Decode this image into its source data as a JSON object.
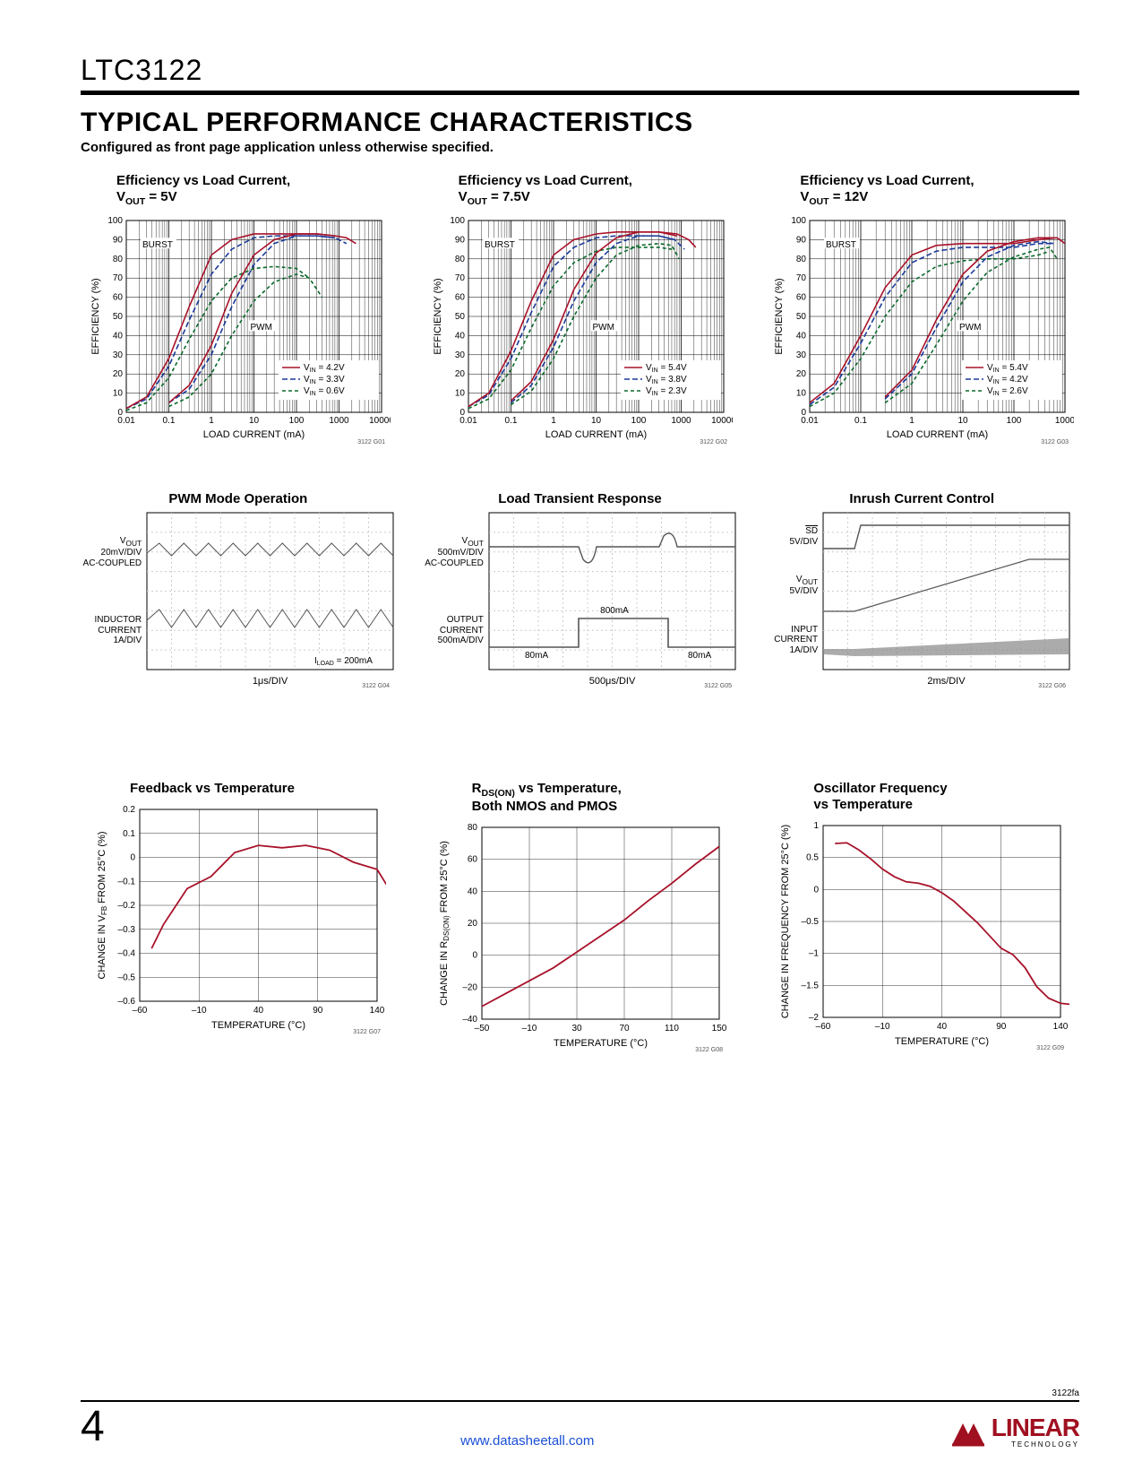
{
  "header": {
    "part_number": "LTC3122",
    "section_title": "TYPICAL PERFORMANCE CHARACTERISTICS",
    "section_subtitle": "Configured as front page application unless otherwise specified."
  },
  "footer": {
    "doc_rev": "3122fa",
    "page_num": "4",
    "link": "www.datasheetall.com",
    "logo_text": "LINEAR",
    "logo_sub": "TECHNOLOGY"
  },
  "colors": {
    "line_red": "#a8122a",
    "line_blue": "#1a3a9a",
    "line_green": "#0a6a2a",
    "grid": "#000000",
    "scope_grid": "#cccccc",
    "scope_trace": "#555555"
  },
  "eff_charts": [
    {
      "title_a": "Efficiency vs Load Current,",
      "title_b": "V<sub>OUT</sub> = 5V",
      "ylabel": "EFFICIENCY (%)",
      "xlabel": "LOAD CURRENT (mA)",
      "fig_id": "3122 G01",
      "yticks": [
        0,
        10,
        20,
        30,
        40,
        50,
        60,
        70,
        80,
        90,
        100
      ],
      "xlabels": [
        "0.01",
        "0.1",
        "1",
        "10",
        "100",
        "1000",
        "10000"
      ],
      "legend": [
        {
          "label": "V_IN = 4.2V",
          "color": "#a8122a",
          "dash": ""
        },
        {
          "label": "V_IN = 3.3V",
          "color": "#1a3a9a",
          "dash": "6,3"
        },
        {
          "label": "V_IN = 0.6V",
          "color": "#0a6a2a",
          "dash": "4,3"
        }
      ],
      "burst_label": "BURST",
      "pwm_label": "PWM",
      "curves": {
        "red_burst": [
          [
            0.01,
            2
          ],
          [
            0.03,
            8
          ],
          [
            0.1,
            28
          ],
          [
            0.3,
            55
          ],
          [
            1,
            82
          ],
          [
            3,
            90
          ],
          [
            10,
            93
          ],
          [
            30,
            93
          ],
          [
            100,
            93
          ],
          [
            300,
            93
          ],
          [
            800,
            92
          ]
        ],
        "blue_burst": [
          [
            0.01,
            2
          ],
          [
            0.03,
            7
          ],
          [
            0.1,
            24
          ],
          [
            0.3,
            48
          ],
          [
            1,
            72
          ],
          [
            3,
            85
          ],
          [
            10,
            91
          ],
          [
            30,
            92
          ],
          [
            100,
            92
          ],
          [
            300,
            92
          ],
          [
            800,
            91
          ]
        ],
        "green_burst": [
          [
            0.01,
            1
          ],
          [
            0.03,
            5
          ],
          [
            0.1,
            18
          ],
          [
            0.3,
            38
          ],
          [
            1,
            58
          ],
          [
            3,
            70
          ],
          [
            10,
            75
          ],
          [
            30,
            76
          ],
          [
            100,
            75
          ],
          [
            200,
            70
          ]
        ],
        "red_pwm": [
          [
            0.1,
            5
          ],
          [
            0.3,
            14
          ],
          [
            1,
            35
          ],
          [
            3,
            62
          ],
          [
            10,
            82
          ],
          [
            30,
            90
          ],
          [
            100,
            93
          ],
          [
            300,
            93
          ],
          [
            800,
            92
          ],
          [
            1500,
            91
          ],
          [
            2500,
            88
          ]
        ],
        "blue_pwm": [
          [
            0.1,
            5
          ],
          [
            0.3,
            12
          ],
          [
            1,
            30
          ],
          [
            3,
            55
          ],
          [
            10,
            77
          ],
          [
            30,
            88
          ],
          [
            100,
            92
          ],
          [
            300,
            92
          ],
          [
            800,
            91
          ],
          [
            1500,
            88
          ]
        ],
        "green_pwm": [
          [
            0.1,
            3
          ],
          [
            0.3,
            8
          ],
          [
            1,
            20
          ],
          [
            3,
            40
          ],
          [
            10,
            58
          ],
          [
            30,
            68
          ],
          [
            100,
            72
          ],
          [
            200,
            70
          ],
          [
            400,
            60
          ]
        ]
      }
    },
    {
      "title_a": "Efficiency vs Load Current,",
      "title_b": "V<sub>OUT</sub> = 7.5V",
      "ylabel": "EFFICIENCY (%)",
      "xlabel": "LOAD CURRENT (mA)",
      "fig_id": "3122 G02",
      "yticks": [
        0,
        10,
        20,
        30,
        40,
        50,
        60,
        70,
        80,
        90,
        100
      ],
      "xlabels": [
        "0.01",
        "0.1",
        "1",
        "10",
        "100",
        "1000",
        "10000"
      ],
      "legend": [
        {
          "label": "V_IN = 5.4V",
          "color": "#a8122a",
          "dash": ""
        },
        {
          "label": "V_IN = 3.8V",
          "color": "#1a3a9a",
          "dash": "6,3"
        },
        {
          "label": "V_IN = 2.3V",
          "color": "#0a6a2a",
          "dash": "4,3"
        }
      ],
      "burst_label": "BURST",
      "pwm_label": "PWM",
      "curves": {
        "red_burst": [
          [
            0.01,
            3
          ],
          [
            0.03,
            10
          ],
          [
            0.1,
            32
          ],
          [
            0.3,
            58
          ],
          [
            1,
            82
          ],
          [
            3,
            90
          ],
          [
            10,
            93
          ],
          [
            30,
            94
          ],
          [
            100,
            94
          ],
          [
            300,
            94
          ],
          [
            800,
            92
          ]
        ],
        "blue_burst": [
          [
            0.01,
            3
          ],
          [
            0.03,
            9
          ],
          [
            0.1,
            28
          ],
          [
            0.3,
            52
          ],
          [
            1,
            76
          ],
          [
            3,
            86
          ],
          [
            10,
            91
          ],
          [
            30,
            92
          ],
          [
            100,
            92
          ],
          [
            300,
            92
          ],
          [
            700,
            90
          ]
        ],
        "green_burst": [
          [
            0.01,
            2
          ],
          [
            0.03,
            7
          ],
          [
            0.1,
            22
          ],
          [
            0.3,
            44
          ],
          [
            1,
            66
          ],
          [
            3,
            78
          ],
          [
            10,
            84
          ],
          [
            30,
            86
          ],
          [
            100,
            86
          ],
          [
            300,
            86
          ],
          [
            600,
            85
          ]
        ],
        "red_pwm": [
          [
            0.1,
            6
          ],
          [
            0.3,
            16
          ],
          [
            1,
            38
          ],
          [
            3,
            64
          ],
          [
            10,
            83
          ],
          [
            30,
            91
          ],
          [
            100,
            94
          ],
          [
            300,
            94
          ],
          [
            800,
            93
          ],
          [
            1500,
            90
          ],
          [
            2200,
            86
          ]
        ],
        "blue_pwm": [
          [
            0.1,
            5
          ],
          [
            0.3,
            14
          ],
          [
            1,
            34
          ],
          [
            3,
            58
          ],
          [
            10,
            78
          ],
          [
            30,
            88
          ],
          [
            100,
            92
          ],
          [
            300,
            92
          ],
          [
            700,
            90
          ],
          [
            1200,
            85
          ]
        ],
        "green_pwm": [
          [
            0.1,
            4
          ],
          [
            0.3,
            11
          ],
          [
            1,
            28
          ],
          [
            3,
            50
          ],
          [
            10,
            70
          ],
          [
            30,
            82
          ],
          [
            100,
            87
          ],
          [
            300,
            88
          ],
          [
            600,
            87
          ],
          [
            900,
            80
          ]
        ]
      }
    },
    {
      "title_a": "Efficiency vs Load Current,",
      "title_b": "V<sub>OUT</sub> = 12V",
      "ylabel": "EFFICIENCY (%)",
      "xlabel": "LOAD CURRENT (mA)",
      "fig_id": "3122 G03",
      "yticks": [
        0,
        10,
        20,
        30,
        40,
        50,
        60,
        70,
        80,
        90,
        100
      ],
      "xlabels": [
        "0.01",
        "0.1",
        "1",
        "10",
        "100",
        "1000"
      ],
      "legend": [
        {
          "label": "V_IN = 5.4V",
          "color": "#a8122a",
          "dash": ""
        },
        {
          "label": "V_IN = 4.2V",
          "color": "#1a3a9a",
          "dash": "6,3"
        },
        {
          "label": "V_IN = 2.6V",
          "color": "#0a6a2a",
          "dash": "4,3"
        }
      ],
      "burst_label": "BURST",
      "pwm_label": "PWM",
      "curves": {
        "red_burst": [
          [
            0.01,
            5
          ],
          [
            0.03,
            15
          ],
          [
            0.1,
            40
          ],
          [
            0.3,
            65
          ],
          [
            1,
            82
          ],
          [
            3,
            87
          ],
          [
            10,
            88
          ],
          [
            30,
            88
          ],
          [
            100,
            88
          ],
          [
            300,
            90
          ],
          [
            700,
            91
          ]
        ],
        "blue_burst": [
          [
            0.01,
            4
          ],
          [
            0.03,
            13
          ],
          [
            0.1,
            36
          ],
          [
            0.3,
            60
          ],
          [
            1,
            78
          ],
          [
            3,
            84
          ],
          [
            10,
            86
          ],
          [
            30,
            86
          ],
          [
            100,
            86
          ],
          [
            300,
            88
          ],
          [
            600,
            88
          ]
        ],
        "green_burst": [
          [
            0.01,
            3
          ],
          [
            0.03,
            10
          ],
          [
            0.1,
            28
          ],
          [
            0.3,
            50
          ],
          [
            1,
            68
          ],
          [
            3,
            76
          ],
          [
            10,
            79
          ],
          [
            30,
            80
          ],
          [
            100,
            80
          ],
          [
            300,
            82
          ],
          [
            500,
            84
          ]
        ],
        "red_pwm": [
          [
            0.3,
            8
          ],
          [
            1,
            22
          ],
          [
            3,
            48
          ],
          [
            10,
            72
          ],
          [
            30,
            84
          ],
          [
            100,
            89
          ],
          [
            300,
            91
          ],
          [
            700,
            91
          ],
          [
            1000,
            88
          ]
        ],
        "blue_pwm": [
          [
            0.3,
            7
          ],
          [
            1,
            20
          ],
          [
            3,
            44
          ],
          [
            10,
            68
          ],
          [
            30,
            81
          ],
          [
            100,
            87
          ],
          [
            300,
            89
          ],
          [
            600,
            88
          ]
        ],
        "green_pwm": [
          [
            0.3,
            5
          ],
          [
            1,
            15
          ],
          [
            3,
            35
          ],
          [
            10,
            58
          ],
          [
            30,
            73
          ],
          [
            100,
            81
          ],
          [
            300,
            85
          ],
          [
            500,
            86
          ],
          [
            700,
            80
          ]
        ]
      }
    }
  ],
  "scope_charts": [
    {
      "title": "PWM Mode Operation",
      "timebase": "1μs/DIV",
      "fig_id": "3122 G04",
      "note": "I_LOAD = 200mA",
      "labels": [
        {
          "lines": [
            "V_OUT",
            "20mV/DIV",
            "AC-COUPLED"
          ]
        },
        {
          "lines": [
            "INDUCTOR",
            "CURRENT",
            "1A/DIV"
          ]
        }
      ]
    },
    {
      "title": "Load Transient Response",
      "timebase": "500μs/DIV",
      "fig_id": "3122 G05",
      "labels": [
        {
          "lines": [
            "V_OUT",
            "500mV/DIV",
            "AC-COUPLED"
          ]
        },
        {
          "lines": [
            "OUTPUT",
            "CURRENT",
            "500mA/DIV"
          ]
        }
      ],
      "annots": {
        "low": "80mA",
        "high": "800mA"
      }
    },
    {
      "title": "Inrush Current Control",
      "timebase": "2ms/DIV",
      "fig_id": "3122 G06",
      "labels": [
        {
          "lines": [
            "SD",
            "5V/DIV"
          ],
          "overline": true
        },
        {
          "lines": [
            "V_OUT",
            "5V/DIV"
          ]
        },
        {
          "lines": [
            "INPUT",
            "CURRENT",
            "1A/DIV"
          ]
        }
      ]
    }
  ],
  "temp_charts": [
    {
      "title": "Feedback vs Temperature",
      "ylabel": "CHANGE IN V_FB FROM 25°C (%)",
      "xlabel": "TEMPERATURE (°C)",
      "fig_id": "3122 G07",
      "yticks": [
        -0.6,
        -0.5,
        -0.4,
        -0.3,
        -0.2,
        -0.1,
        0,
        0.1,
        0.2
      ],
      "xticks": [
        -60,
        -10,
        40,
        90,
        140
      ],
      "curve": [
        [
          -50,
          -0.38
        ],
        [
          -40,
          -0.28
        ],
        [
          -20,
          -0.13
        ],
        [
          0,
          -0.08
        ],
        [
          20,
          0.02
        ],
        [
          40,
          0.05
        ],
        [
          60,
          0.04
        ],
        [
          80,
          0.05
        ],
        [
          100,
          0.03
        ],
        [
          120,
          -0.02
        ],
        [
          140,
          -0.05
        ],
        [
          150,
          -0.13
        ]
      ]
    },
    {
      "title_a": "R<sub>DS(ON)</sub> vs Temperature,",
      "title_b": "Both NMOS and PMOS",
      "ylabel": "CHANGE IN R_DS(ON) FROM 25°C (%)",
      "xlabel": "TEMPERATURE (°C)",
      "fig_id": "3122 G08",
      "yticks": [
        -40,
        -20,
        0,
        20,
        40,
        60,
        80
      ],
      "xticks": [
        -50,
        -10,
        30,
        70,
        110,
        150
      ],
      "curve": [
        [
          -50,
          -32
        ],
        [
          -30,
          -24
        ],
        [
          -10,
          -16
        ],
        [
          10,
          -8
        ],
        [
          30,
          2
        ],
        [
          50,
          12
        ],
        [
          70,
          22
        ],
        [
          90,
          34
        ],
        [
          110,
          45
        ],
        [
          130,
          57
        ],
        [
          150,
          68
        ]
      ]
    },
    {
      "title_a": "Oscillator Frequency",
      "title_b": "vs Temperature",
      "ylabel": "CHANGE IN FREQUENCY FROM 25°C (%)",
      "xlabel": "TEMPERATURE (°C)",
      "fig_id": "3122 G09",
      "yticks": [
        -2.0,
        -1.5,
        -1.0,
        -0.5,
        0,
        0.5,
        1.0
      ],
      "xticks": [
        -60,
        -10,
        40,
        90,
        140
      ],
      "curve": [
        [
          -50,
          0.72
        ],
        [
          -40,
          0.73
        ],
        [
          -30,
          0.62
        ],
        [
          -20,
          0.48
        ],
        [
          -10,
          0.32
        ],
        [
          0,
          0.2
        ],
        [
          10,
          0.12
        ],
        [
          20,
          0.1
        ],
        [
          30,
          0.05
        ],
        [
          40,
          -0.05
        ],
        [
          50,
          -0.18
        ],
        [
          60,
          -0.35
        ],
        [
          70,
          -0.52
        ],
        [
          80,
          -0.72
        ],
        [
          90,
          -0.92
        ],
        [
          100,
          -1.02
        ],
        [
          110,
          -1.22
        ],
        [
          120,
          -1.52
        ],
        [
          130,
          -1.7
        ],
        [
          140,
          -1.78
        ],
        [
          150,
          -1.8
        ]
      ]
    }
  ]
}
